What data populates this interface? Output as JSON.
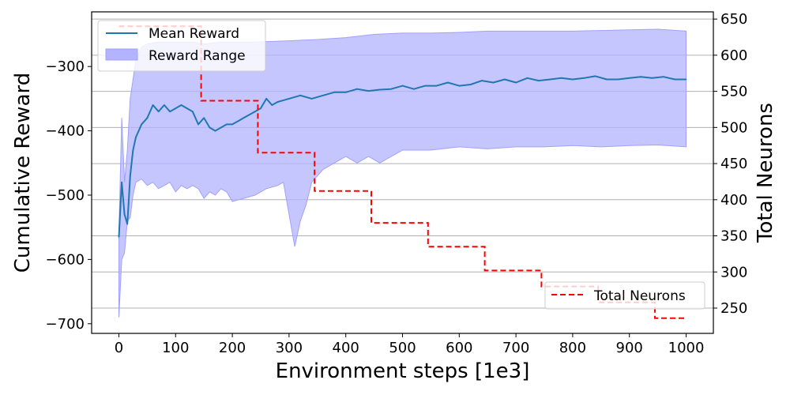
{
  "chart_data": {
    "type": "line",
    "xlabel": "Environment steps [1e3]",
    "ylabel": "Cumulative Reward",
    "y2label": "Total Neurons",
    "xlim": [
      -48,
      1048
    ],
    "ylim": [
      -715,
      -215
    ],
    "y2lim": [
      215,
      660
    ],
    "x_ticks": [
      "0",
      "100",
      "200",
      "300",
      "400",
      "500",
      "600",
      "700",
      "800",
      "900",
      "1000"
    ],
    "y_ticks": [
      "−300",
      "−400",
      "−500",
      "−600",
      "−700"
    ],
    "y2_ticks": [
      "250",
      "300",
      "350",
      "400",
      "450",
      "500",
      "550",
      "600",
      "650"
    ],
    "grid": "right-axis horizontal",
    "legend_top_left": [
      "Mean Reward",
      "Reward Range"
    ],
    "legend_bottom_right": [
      "Total Neurons"
    ],
    "colors": {
      "mean": "#1f77b4",
      "range": "#b3b3ff",
      "range_edge": "#a0a0ff",
      "neurons": "#ff0000"
    },
    "series": [
      {
        "name": "Mean Reward",
        "x": [
          0,
          5,
          10,
          15,
          20,
          25,
          30,
          40,
          50,
          60,
          70,
          80,
          90,
          100,
          110,
          120,
          130,
          140,
          150,
          160,
          170,
          180,
          190,
          200,
          210,
          220,
          230,
          240,
          250,
          260,
          270,
          280,
          300,
          320,
          340,
          360,
          380,
          400,
          420,
          440,
          460,
          480,
          500,
          520,
          540,
          560,
          580,
          600,
          620,
          640,
          660,
          680,
          700,
          720,
          740,
          760,
          780,
          800,
          820,
          840,
          860,
          880,
          900,
          920,
          940,
          960,
          980,
          1000
        ],
        "y": [
          -565,
          -480,
          -530,
          -545,
          -470,
          -430,
          -410,
          -390,
          -380,
          -360,
          -370,
          -360,
          -370,
          -365,
          -360,
          -365,
          -370,
          -390,
          -380,
          -395,
          -400,
          -395,
          -390,
          -390,
          -385,
          -380,
          -375,
          -370,
          -365,
          -350,
          -360,
          -355,
          -350,
          -345,
          -350,
          -345,
          -340,
          -340,
          -335,
          -338,
          -336,
          -335,
          -330,
          -335,
          -330,
          -330,
          -325,
          -330,
          -328,
          -322,
          -325,
          -320,
          -325,
          -318,
          -322,
          -320,
          -318,
          -320,
          -318,
          -315,
          -320,
          -320,
          -318,
          -316,
          -318,
          -316,
          -320,
          -320
        ]
      },
      {
        "name": "Reward Range upper",
        "x": [
          0,
          5,
          10,
          15,
          20,
          25,
          30,
          40,
          50,
          70,
          100,
          130,
          150,
          180,
          200,
          240,
          300,
          350,
          400,
          450,
          500,
          550,
          600,
          650,
          700,
          750,
          800,
          850,
          900,
          950,
          1000
        ],
        "y": [
          -560,
          -380,
          -480,
          -430,
          -350,
          -320,
          -290,
          -270,
          -265,
          -262,
          -262,
          -262,
          -265,
          -262,
          -262,
          -262,
          -260,
          -258,
          -255,
          -250,
          -248,
          -248,
          -247,
          -245,
          -245,
          -245,
          -245,
          -244,
          -243,
          -242,
          -245
        ]
      },
      {
        "name": "Reward Range lower",
        "x": [
          0,
          5,
          10,
          15,
          20,
          25,
          30,
          40,
          50,
          60,
          70,
          80,
          90,
          100,
          110,
          120,
          130,
          140,
          150,
          160,
          170,
          180,
          190,
          200,
          220,
          240,
          260,
          280,
          290,
          300,
          310,
          320,
          330,
          340,
          350,
          360,
          380,
          400,
          420,
          440,
          460,
          480,
          500,
          550,
          600,
          650,
          700,
          750,
          800,
          850,
          900,
          950,
          1000
        ],
        "y": [
          -690,
          -600,
          -590,
          -540,
          -535,
          -500,
          -480,
          -475,
          -485,
          -480,
          -490,
          -485,
          -480,
          -495,
          -485,
          -490,
          -485,
          -490,
          -505,
          -495,
          -500,
          -490,
          -495,
          -510,
          -505,
          -500,
          -490,
          -485,
          -480,
          -530,
          -580,
          -540,
          -515,
          -480,
          -470,
          -460,
          -450,
          -440,
          -450,
          -440,
          -450,
          -440,
          -430,
          -430,
          -425,
          -428,
          -425,
          -425,
          -423,
          -425,
          -423,
          -422,
          -425
        ]
      },
      {
        "name": "Total Neurons",
        "x": [
          0,
          145,
          145,
          245,
          245,
          345,
          345,
          445,
          445,
          545,
          545,
          645,
          645,
          745,
          745,
          845,
          845,
          945,
          945,
          1000
        ],
        "y": [
          640,
          640,
          537,
          537,
          465,
          465,
          412,
          412,
          368,
          368,
          335,
          335,
          302,
          302,
          280,
          280,
          258,
          258,
          236,
          236
        ]
      }
    ]
  }
}
